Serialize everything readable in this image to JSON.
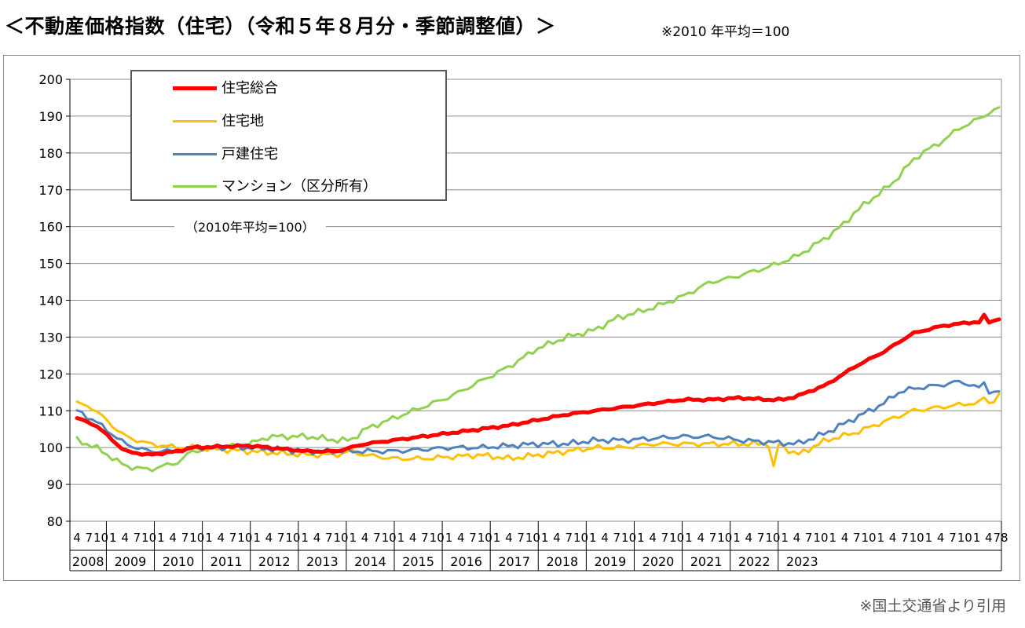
{
  "title": "＜不動産価格指数（住宅）（令和５年８月分・季節調整値）＞",
  "note": "※2010 年平均＝100",
  "credit": "※国土交通省より引用",
  "chart_data": {
    "type": "line",
    "ylim": [
      80,
      200
    ],
    "yticks": [
      "80",
      "90",
      "100",
      "110",
      "120",
      "130",
      "140",
      "150",
      "160",
      "170",
      "180",
      "190",
      "200"
    ],
    "unit_label": "（2010年平均=100）",
    "x_month_labels": [
      "4",
      "7",
      "10",
      "1",
      "4",
      "7",
      "10",
      "1",
      "4",
      "7",
      "10",
      "1",
      "4",
      "7",
      "10",
      "1",
      "4",
      "7",
      "10",
      "1",
      "4",
      "7",
      "10",
      "1",
      "4",
      "7",
      "10",
      "1",
      "4",
      "7",
      "10",
      "1",
      "4",
      "7",
      "10",
      "1",
      "4",
      "7",
      "10",
      "1",
      "4",
      "7",
      "10",
      "1",
      "4",
      "7",
      "10",
      "1",
      "4",
      "7",
      "10",
      "1",
      "4",
      "7",
      "10",
      "1",
      "4",
      "7",
      "10",
      "1",
      "4",
      "7",
      "10",
      "1",
      "4",
      "7",
      "10",
      "1",
      "4",
      "7",
      "10",
      "1",
      "4",
      "7",
      "10",
      "1",
      "4",
      "78"
    ],
    "years": [
      "2008",
      "2009",
      "2010",
      "2011",
      "2012",
      "2013",
      "2014",
      "2015",
      "2016",
      "2017",
      "2018",
      "2019",
      "2020",
      "2021",
      "2022",
      "2023"
    ],
    "x_start": "2008-04",
    "x_end": "2023-08",
    "series": [
      {
        "name": "住宅総合",
        "color": "#ff0000",
        "width": 5,
        "anchors": [
          [
            0,
            108
          ],
          [
            4,
            106
          ],
          [
            10,
            99
          ],
          [
            15,
            98
          ],
          [
            21,
            99
          ],
          [
            24,
            100
          ],
          [
            36,
            100.5
          ],
          [
            48,
            99
          ],
          [
            54,
            99
          ],
          [
            57,
            100
          ],
          [
            60,
            101
          ],
          [
            66,
            102
          ],
          [
            72,
            103
          ],
          [
            78,
            104
          ],
          [
            84,
            105
          ],
          [
            90,
            106
          ],
          [
            96,
            107.5
          ],
          [
            102,
            109
          ],
          [
            108,
            110
          ],
          [
            114,
            111
          ],
          [
            120,
            112
          ],
          [
            126,
            113
          ],
          [
            132,
            113
          ],
          [
            138,
            113.5
          ],
          [
            144,
            113
          ],
          [
            147,
            113
          ],
          [
            150,
            114
          ],
          [
            156,
            117
          ],
          [
            162,
            122
          ],
          [
            168,
            126
          ],
          [
            174,
            131
          ],
          [
            180,
            133
          ],
          [
            186,
            134
          ],
          [
            188,
            134
          ],
          [
            189,
            136
          ],
          [
            190,
            134
          ],
          [
            192,
            135
          ]
        ]
      },
      {
        "name": "住宅地",
        "color": "#ffc000",
        "width": 3,
        "anchors": [
          [
            0,
            112
          ],
          [
            3,
            111
          ],
          [
            10,
            103
          ],
          [
            15,
            101
          ],
          [
            21,
            100
          ],
          [
            24,
            100
          ],
          [
            36,
            99
          ],
          [
            48,
            98
          ],
          [
            54,
            98
          ],
          [
            57,
            99
          ],
          [
            60,
            98
          ],
          [
            66,
            97
          ],
          [
            72,
            97
          ],
          [
            78,
            97.5
          ],
          [
            84,
            98
          ],
          [
            90,
            97
          ],
          [
            96,
            98
          ],
          [
            102,
            99
          ],
          [
            108,
            100
          ],
          [
            114,
            100
          ],
          [
            120,
            101
          ],
          [
            126,
            101
          ],
          [
            132,
            101
          ],
          [
            138,
            101
          ],
          [
            144,
            101
          ],
          [
            145,
            94
          ],
          [
            146,
            101
          ],
          [
            150,
            98
          ],
          [
            156,
            102
          ],
          [
            162,
            104
          ],
          [
            168,
            107
          ],
          [
            174,
            110
          ],
          [
            180,
            111
          ],
          [
            186,
            112
          ],
          [
            188,
            112
          ],
          [
            189,
            114
          ],
          [
            190,
            112
          ],
          [
            192,
            114
          ]
        ]
      },
      {
        "name": "戸建住宅",
        "color": "#4f81bd",
        "width": 3,
        "anchors": [
          [
            0,
            110
          ],
          [
            4,
            107
          ],
          [
            10,
            101
          ],
          [
            15,
            99
          ],
          [
            21,
            99
          ],
          [
            24,
            100
          ],
          [
            36,
            100
          ],
          [
            48,
            99
          ],
          [
            54,
            99
          ],
          [
            57,
            99
          ],
          [
            60,
            99
          ],
          [
            66,
            99
          ],
          [
            72,
            99.5
          ],
          [
            78,
            100
          ],
          [
            84,
            100
          ],
          [
            90,
            100.5
          ],
          [
            96,
            101
          ],
          [
            102,
            101
          ],
          [
            108,
            102
          ],
          [
            114,
            102
          ],
          [
            120,
            102.5
          ],
          [
            126,
            103
          ],
          [
            132,
            103
          ],
          [
            138,
            102
          ],
          [
            144,
            101.5
          ],
          [
            150,
            101
          ],
          [
            156,
            104
          ],
          [
            162,
            108
          ],
          [
            168,
            112
          ],
          [
            171,
            115
          ],
          [
            174,
            116
          ],
          [
            180,
            117
          ],
          [
            184,
            118
          ],
          [
            186,
            117
          ],
          [
            188,
            116
          ],
          [
            189,
            118
          ],
          [
            190,
            115
          ],
          [
            192,
            115
          ]
        ]
      },
      {
        "name": "マンション（区分所有）",
        "color": "#92d050",
        "width": 3,
        "anchors": [
          [
            0,
            102
          ],
          [
            4,
            100
          ],
          [
            10,
            95
          ],
          [
            15,
            94
          ],
          [
            21,
            96
          ],
          [
            24,
            99
          ],
          [
            30,
            100
          ],
          [
            36,
            101
          ],
          [
            40,
            103
          ],
          [
            48,
            103
          ],
          [
            54,
            102
          ],
          [
            57,
            102
          ],
          [
            60,
            105
          ],
          [
            66,
            108
          ],
          [
            70,
            110
          ],
          [
            74,
            112
          ],
          [
            78,
            114
          ],
          [
            84,
            118
          ],
          [
            90,
            122
          ],
          [
            96,
            127
          ],
          [
            102,
            130
          ],
          [
            108,
            132
          ],
          [
            112,
            135
          ],
          [
            120,
            138
          ],
          [
            126,
            141
          ],
          [
            132,
            145
          ],
          [
            136,
            146
          ],
          [
            144,
            149
          ],
          [
            148,
            151
          ],
          [
            150,
            152
          ],
          [
            156,
            157
          ],
          [
            160,
            161
          ],
          [
            162,
            164
          ],
          [
            168,
            170
          ],
          [
            170,
            172
          ],
          [
            174,
            178
          ],
          [
            176,
            180
          ],
          [
            180,
            183
          ],
          [
            184,
            187
          ],
          [
            186,
            188
          ],
          [
            190,
            191
          ],
          [
            192,
            192
          ]
        ]
      }
    ]
  }
}
